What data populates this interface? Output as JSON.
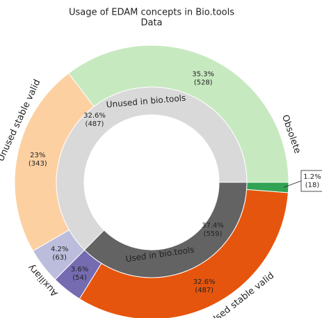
{
  "chart_data": {
    "type": "nested-donut",
    "title": "Usage of EDAM concepts in Bio.tools",
    "subtitle": "Data",
    "outer": {
      "values": [
        528,
        18,
        487,
        54,
        63,
        343
      ],
      "value_labels": [
        "(528)",
        "(18)",
        "(487)",
        "(54)",
        "(63)",
        "(343)"
      ],
      "percents": [
        35.3,
        1.2,
        32.6,
        3.6,
        4.2,
        23
      ],
      "percent_labels": [
        "35.3%",
        "1.2%",
        "32.6%",
        "3.6%",
        "4.2%",
        "23%"
      ],
      "colors": [
        "#c7e9c0",
        "#31a354",
        "#e6550d",
        "#756bb1",
        "#bcbddc",
        "#fdd0a2"
      ]
    },
    "groups": [
      {
        "name": "Obsolete",
        "color": "#41ab5d"
      },
      {
        "name": "Used stable valid",
        "color": "#f07a3a"
      },
      {
        "name": "Auxiliary",
        "color": "#756bb1"
      },
      {
        "name": "Unused stable valid",
        "color": "#f5a05a"
      }
    ],
    "inner": [
      {
        "name": "Unused in bio.tools",
        "percent_label": "32.6%",
        "count_label": "(487)",
        "color": "#d9d9d9"
      },
      {
        "name": "Used in bio.tools",
        "percent_label": "37.4%",
        "count_label": "(559)",
        "color": "#636363"
      }
    ]
  }
}
